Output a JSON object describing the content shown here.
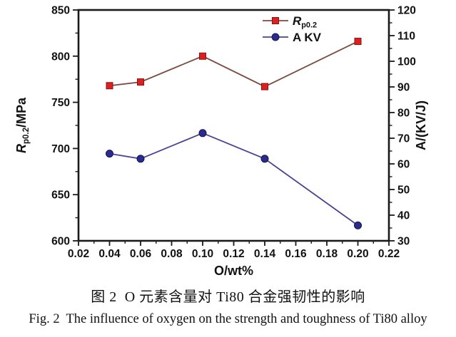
{
  "figure": {
    "caption_cn": "图 2  O 元素含量对 Ti80 合金强韧性的影响",
    "caption_en": "Fig. 2  The influence of oxygen on the strength and toughness of Ti80 alloy"
  },
  "colors": {
    "axis": "#1a1a1a",
    "tick_label": "#111111"
  },
  "chart_data": {
    "type": "line",
    "title": "",
    "xlabel": "O/wt%",
    "grid": false,
    "legend_position": "top-center-inside",
    "x": [
      0.04,
      0.06,
      0.1,
      0.14,
      0.2
    ],
    "x_axis": {
      "min": 0.02,
      "max": 0.22,
      "major_step": 0.02,
      "minor_step": 0.01,
      "decimals": 2
    },
    "y_left": {
      "min": 600,
      "max": 850,
      "major_step": 50,
      "minor_step": 25,
      "decimals": 0,
      "label_text": "Rp0.2/MPa",
      "label_segments": [
        {
          "t": "R",
          "italic": true
        },
        {
          "t": "p0.2",
          "sub": true
        },
        {
          "t": "/MPa"
        }
      ]
    },
    "y_right": {
      "min": 30,
      "max": 120,
      "major_step": 10,
      "minor_step": 5,
      "decimals": 0,
      "label_text": "A/(KV/J)",
      "label_segments": [
        {
          "t": "A/(KV/J)"
        }
      ]
    },
    "series": [
      {
        "name": "Rp0.2",
        "axis": "left",
        "marker": "square",
        "values": [
          768,
          772,
          800,
          767,
          816
        ],
        "line_color": "#7b4a40",
        "marker_color": "#dc2020",
        "marker_edge": "#8f0f0f",
        "label_segments": [
          {
            "t": "R",
            "italic": true
          },
          {
            "t": "p0.2",
            "sub": true
          }
        ]
      },
      {
        "name": "A KV",
        "axis": "right",
        "marker": "circle",
        "values": [
          64,
          62,
          72,
          62,
          36
        ],
        "line_color": "#4a4292",
        "marker_color": "#2b2b8e",
        "marker_edge": "#13134f",
        "label_segments": [
          {
            "t": "A KV"
          }
        ]
      }
    ]
  }
}
